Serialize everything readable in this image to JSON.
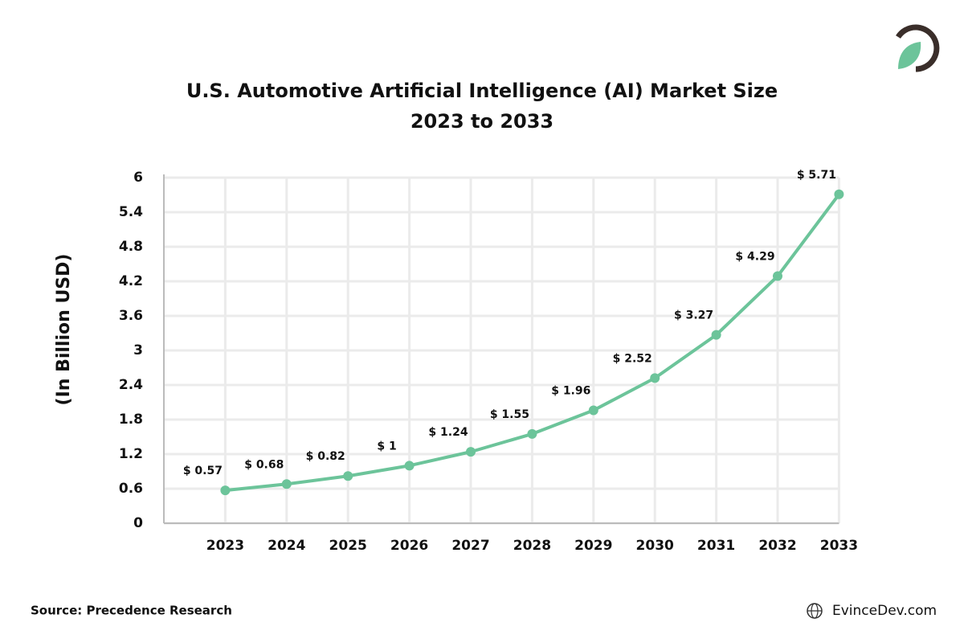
{
  "chart_data": {
    "type": "line",
    "title": "U.S. Automotive Artificial Intelligence (AI) Market Size",
    "subtitle": "2023 to 2033",
    "y_label": "(In Billion USD)",
    "source": "Source: Precedence Research",
    "brand": "EvinceDev.com",
    "categories": [
      "2023",
      "2024",
      "2025",
      "2026",
      "2027",
      "2028",
      "2029",
      "2030",
      "2031",
      "2032",
      "2033"
    ],
    "values": [
      0.57,
      0.68,
      0.82,
      1,
      1.24,
      1.55,
      1.96,
      2.52,
      3.27,
      4.29,
      5.71
    ],
    "value_labels": [
      "$ 0.57",
      "$ 0.68",
      "$ 0.82",
      "$ 1",
      "$ 1.24",
      "$ 1.55",
      "$ 1.96",
      "$ 2.52",
      "$ 3.27",
      "$ 4.29",
      "$ 5.71"
    ],
    "color": "#6cc49a",
    "ylim": [
      0,
      6
    ],
    "yticks": [
      0,
      0.6,
      1.2,
      1.8,
      2.4,
      3,
      3.6,
      4.2,
      4.8,
      5.4,
      6
    ],
    "grid": true
  }
}
